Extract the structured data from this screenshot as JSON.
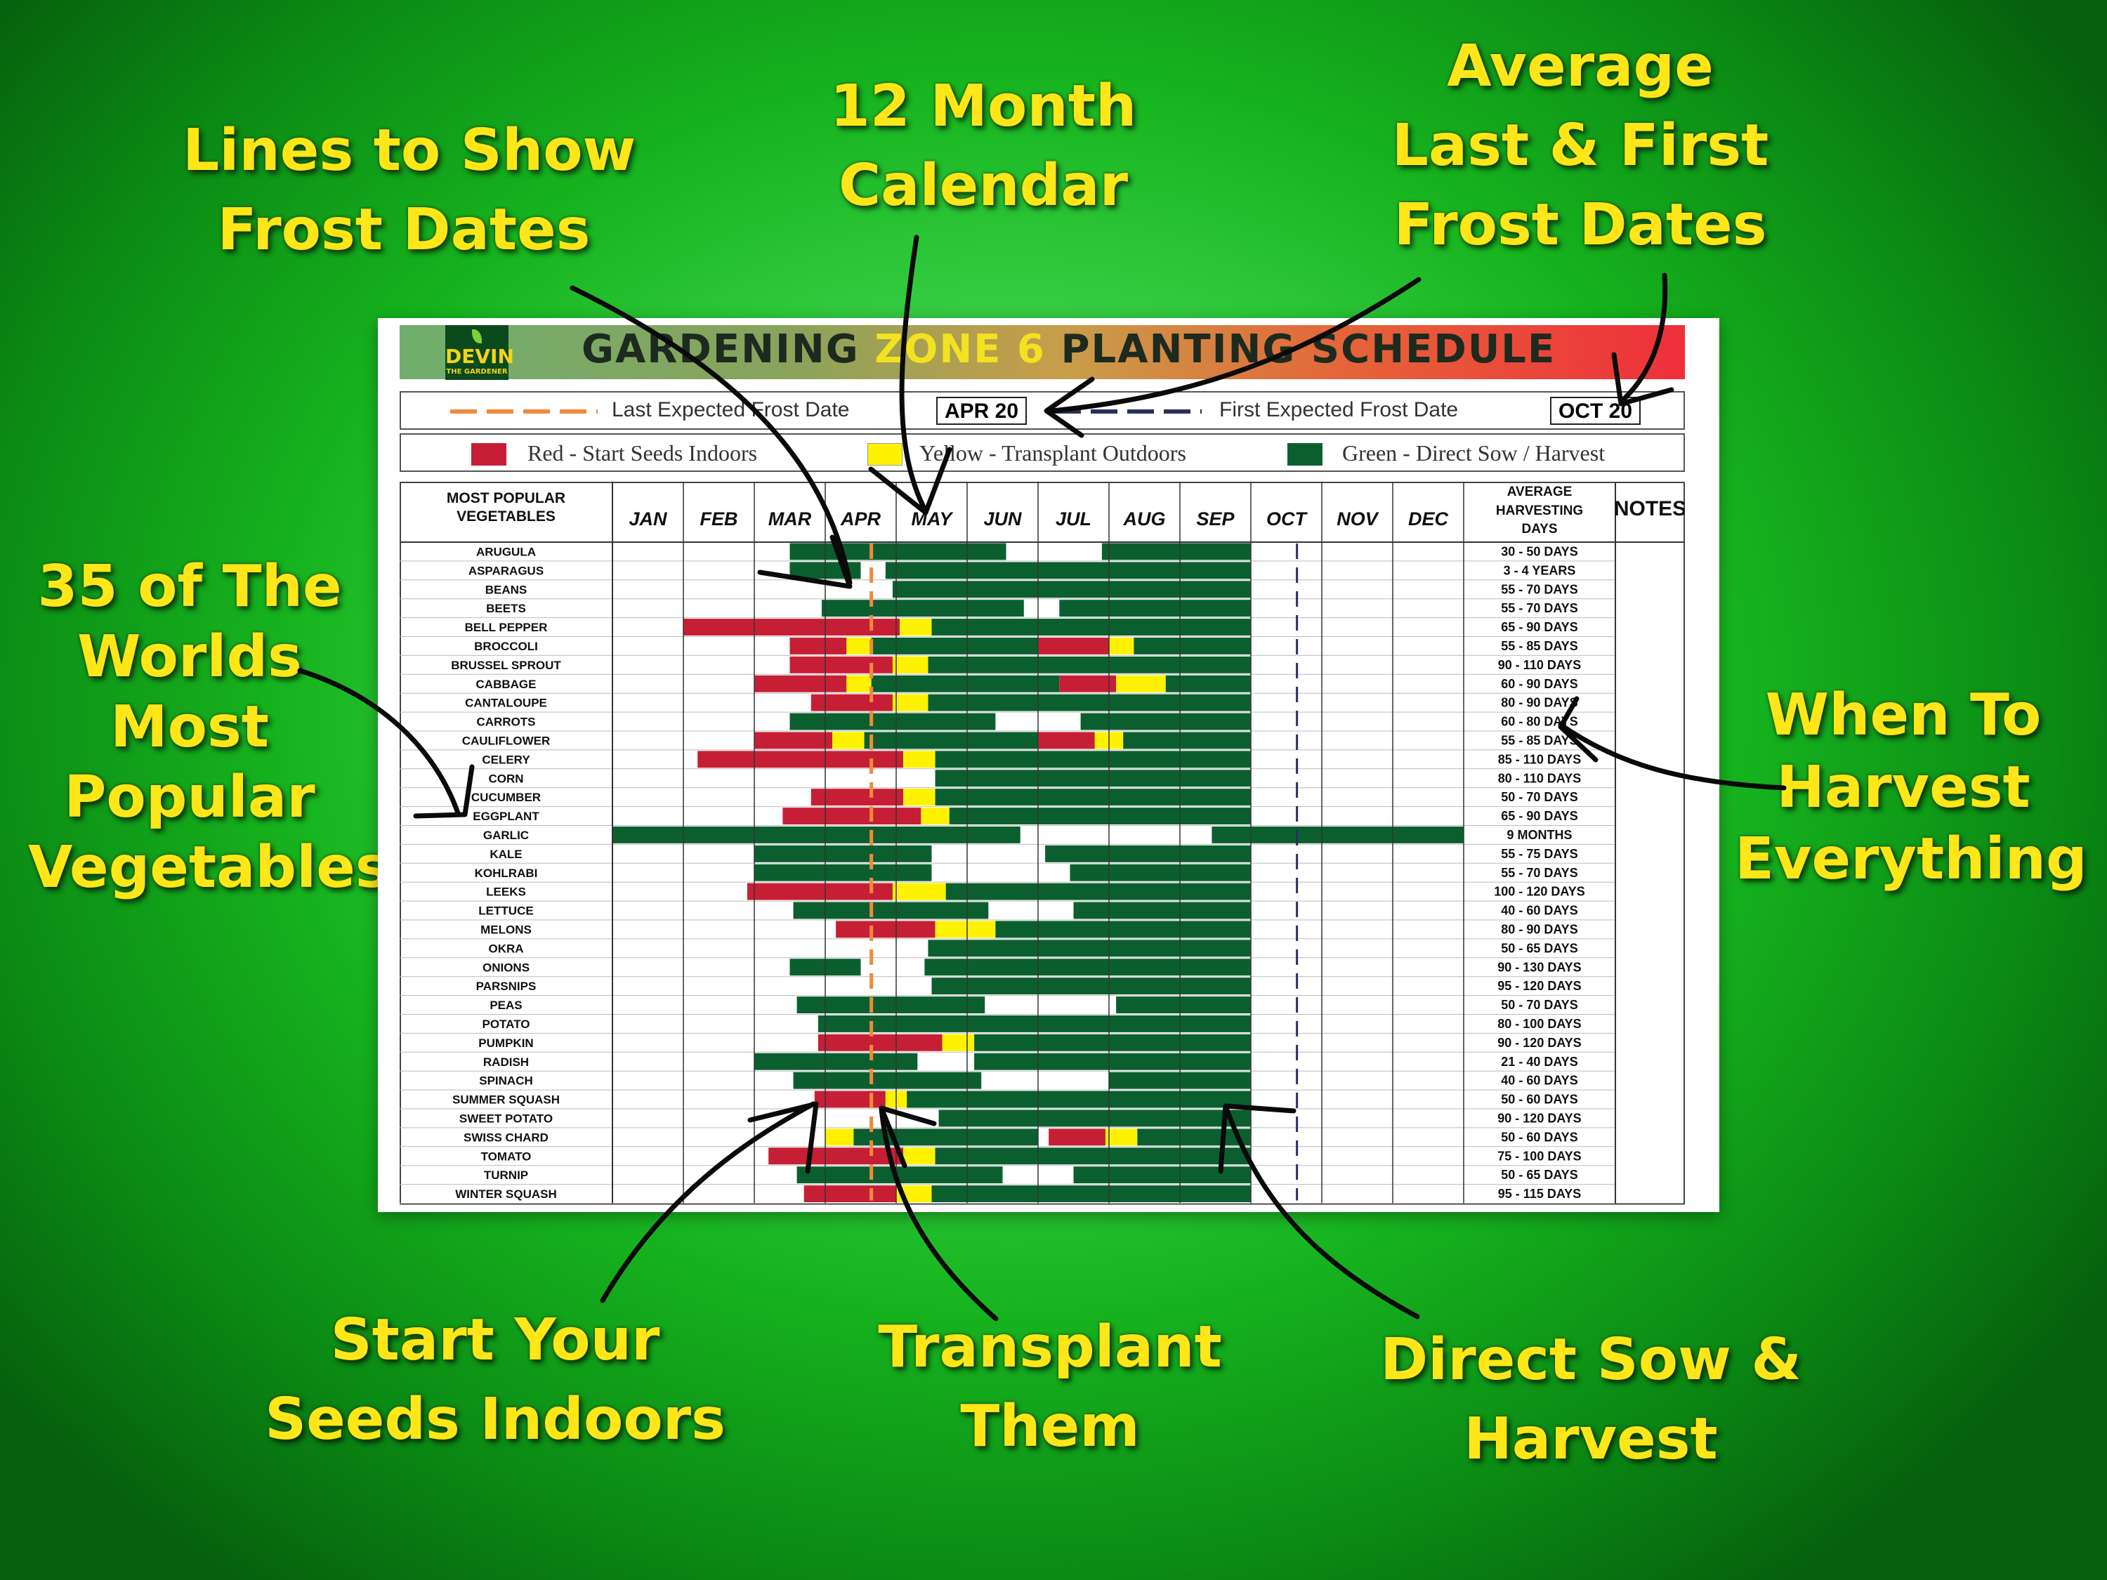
{
  "callouts": [
    {
      "id": "frost-lines",
      "lines": [
        "Lines to Show",
        "Frost Dates"
      ]
    },
    {
      "id": "calendar",
      "lines": [
        "12 Month",
        "Calendar"
      ]
    },
    {
      "id": "avg-frost",
      "lines": [
        "Average",
        "Last & First",
        "Frost Dates"
      ]
    },
    {
      "id": "popular",
      "lines": [
        "35 of The",
        "Worlds",
        "Most",
        "Popular",
        "Vegetables"
      ]
    },
    {
      "id": "harvest",
      "lines": [
        "When To",
        "Harvest",
        "Everything"
      ]
    },
    {
      "id": "indoors",
      "lines": [
        "Start Your",
        "Seeds Indoors"
      ]
    },
    {
      "id": "transplant",
      "lines": [
        "Transplant",
        "Them"
      ]
    },
    {
      "id": "sow",
      "lines": [
        "Direct Sow &",
        "Harvest"
      ]
    }
  ],
  "sheet": {
    "logo_main": "DEVIN",
    "logo_sub": "THE GARDENER",
    "title_part1": "GARDENING ",
    "title_highlight": "ZONE 6",
    "title_part2": " PLANTING SCHEDULE",
    "last_frost_label": "Last Expected Frost Date",
    "last_frost_date": "APR 20",
    "first_frost_label": "First Expected Frost Date",
    "first_frost_date": "OCT 20",
    "legend": {
      "red": "Red - Start Seeds Indoors",
      "yellow": "Yellow - Transplant Outdoors",
      "green": "Green - Direct Sow / Harvest"
    }
  },
  "colors": {
    "red": "#c61f35",
    "yellow": "#fff200",
    "green": "#0b5f2f",
    "last_frost_line": "#f08a3c",
    "first_frost_line": "#28305e"
  },
  "chart_data": {
    "type": "table",
    "headers": {
      "vegetable": "MOST POPULAR VEGETABLES",
      "harvest": "AVERAGE HARVESTING DAYS",
      "notes": "NOTES"
    },
    "months": [
      "JAN",
      "FEB",
      "MAR",
      "APR",
      "MAY",
      "JUN",
      "JUL",
      "AUG",
      "SEP",
      "OCT",
      "NOV",
      "DEC"
    ],
    "last_frost": 3.65,
    "first_frost": 9.65,
    "rows": [
      {
        "name": "ARUGULA",
        "days": "30 - 50 DAYS",
        "segments": [
          [
            "g",
            2.5,
            5.55
          ],
          [
            "g",
            6.9,
            9.0
          ]
        ]
      },
      {
        "name": "ASPARAGUS",
        "days": "3 - 4 YEARS",
        "segments": [
          [
            "g",
            2.5,
            3.5
          ],
          [
            "g",
            3.85,
            9.0
          ]
        ]
      },
      {
        "name": "BEANS",
        "days": "55 - 70 DAYS",
        "segments": [
          [
            "g",
            3.95,
            9.0
          ]
        ]
      },
      {
        "name": "BEETS",
        "days": "55 - 70 DAYS",
        "segments": [
          [
            "g",
            2.95,
            5.8
          ],
          [
            "g",
            6.3,
            9.0
          ]
        ]
      },
      {
        "name": "BELL PEPPER",
        "days": "65 - 90 DAYS",
        "segments": [
          [
            "r",
            1.0,
            4.05
          ],
          [
            "y",
            4.05,
            4.5
          ],
          [
            "g",
            4.5,
            9.0
          ]
        ]
      },
      {
        "name": "BROCCOLI",
        "days": "55 - 85 DAYS",
        "segments": [
          [
            "r",
            2.5,
            3.3
          ],
          [
            "y",
            3.3,
            3.65
          ],
          [
            "g",
            3.65,
            6.0
          ],
          [
            "r",
            6.0,
            7.0
          ],
          [
            "y",
            7.0,
            7.35
          ],
          [
            "g",
            7.35,
            9.0
          ]
        ]
      },
      {
        "name": "BRUSSEL SPROUT",
        "days": "90 - 110 DAYS",
        "segments": [
          [
            "r",
            2.5,
            3.95
          ],
          [
            "y",
            3.95,
            4.45
          ],
          [
            "g",
            4.45,
            9.0
          ]
        ]
      },
      {
        "name": "CABBAGE",
        "days": "60 - 90 DAYS",
        "segments": [
          [
            "r",
            2.0,
            3.3
          ],
          [
            "y",
            3.3,
            3.65
          ],
          [
            "g",
            3.65,
            6.3
          ],
          [
            "r",
            6.3,
            7.1
          ],
          [
            "y",
            7.1,
            7.8
          ],
          [
            "g",
            7.8,
            9.0
          ]
        ]
      },
      {
        "name": "CANTALOUPE",
        "days": "80 - 90 DAYS",
        "segments": [
          [
            "r",
            2.8,
            3.95
          ],
          [
            "y",
            3.95,
            4.45
          ],
          [
            "g",
            4.45,
            9.0
          ]
        ]
      },
      {
        "name": "CARROTS",
        "days": "60 - 80 DAYS",
        "segments": [
          [
            "g",
            2.5,
            5.4
          ],
          [
            "g",
            6.6,
            9.0
          ]
        ]
      },
      {
        "name": "CAULIFLOWER",
        "days": "55 - 85 DAYS",
        "segments": [
          [
            "r",
            2.0,
            3.1
          ],
          [
            "y",
            3.1,
            3.55
          ],
          [
            "g",
            3.55,
            6.0
          ],
          [
            "r",
            6.0,
            6.8
          ],
          [
            "y",
            6.8,
            7.2
          ],
          [
            "g",
            7.2,
            9.0
          ]
        ]
      },
      {
        "name": "CELERY",
        "days": "85 - 110 DAYS",
        "segments": [
          [
            "r",
            1.2,
            4.1
          ],
          [
            "y",
            4.1,
            4.55
          ],
          [
            "g",
            4.55,
            9.0
          ]
        ]
      },
      {
        "name": "CORN",
        "days": "80 - 110 DAYS",
        "segments": [
          [
            "g",
            4.55,
            9.0
          ]
        ]
      },
      {
        "name": "CUCUMBER",
        "days": "50 - 70 DAYS",
        "segments": [
          [
            "r",
            2.8,
            4.1
          ],
          [
            "y",
            4.1,
            4.55
          ],
          [
            "g",
            4.55,
            9.0
          ]
        ]
      },
      {
        "name": "EGGPLANT",
        "days": "65 - 90 DAYS",
        "segments": [
          [
            "r",
            2.4,
            4.35
          ],
          [
            "y",
            4.35,
            4.75
          ],
          [
            "g",
            4.75,
            9.0
          ]
        ]
      },
      {
        "name": "GARLIC",
        "days": "9 MONTHS",
        "segments": [
          [
            "g",
            0,
            5.75
          ],
          [
            "g",
            8.45,
            12.0
          ]
        ]
      },
      {
        "name": "KALE",
        "days": "55 - 75 DAYS",
        "segments": [
          [
            "g",
            2.0,
            4.5
          ],
          [
            "g",
            6.1,
            9.0
          ]
        ]
      },
      {
        "name": "KOHLRABI",
        "days": "55 - 70 DAYS",
        "segments": [
          [
            "g",
            2.0,
            4.5
          ],
          [
            "g",
            6.45,
            9.0
          ]
        ]
      },
      {
        "name": "LEEKS",
        "days": "100 - 120 DAYS",
        "segments": [
          [
            "r",
            1.9,
            3.95
          ],
          [
            "y",
            3.95,
            4.7
          ],
          [
            "g",
            4.7,
            9.0
          ]
        ]
      },
      {
        "name": "LETTUCE",
        "days": "40 - 60 DAYS",
        "segments": [
          [
            "g",
            2.55,
            5.3
          ],
          [
            "g",
            6.5,
            9.0
          ]
        ]
      },
      {
        "name": "MELONS",
        "days": "80 - 90 DAYS",
        "segments": [
          [
            "r",
            3.15,
            4.55
          ],
          [
            "y",
            4.55,
            5.4
          ],
          [
            "g",
            5.4,
            9.0
          ]
        ]
      },
      {
        "name": "OKRA",
        "days": "50 - 65 DAYS",
        "segments": [
          [
            "g",
            4.45,
            9.0
          ]
        ]
      },
      {
        "name": "ONIONS",
        "days": "90 - 130 DAYS",
        "segments": [
          [
            "g",
            2.5,
            3.5
          ],
          [
            "g",
            4.4,
            9.0
          ]
        ]
      },
      {
        "name": "PARSNIPS",
        "days": "95 - 120 DAYS",
        "segments": [
          [
            "g",
            4.5,
            9.0
          ]
        ]
      },
      {
        "name": "PEAS",
        "days": "50 - 70 DAYS",
        "segments": [
          [
            "g",
            2.6,
            5.25
          ],
          [
            "g",
            7.1,
            9.0
          ]
        ]
      },
      {
        "name": "POTATO",
        "days": "80 - 100 DAYS",
        "segments": [
          [
            "g",
            2.9,
            9.0
          ]
        ]
      },
      {
        "name": "PUMPKIN",
        "days": "90 - 120 DAYS",
        "segments": [
          [
            "r",
            2.9,
            4.65
          ],
          [
            "y",
            4.65,
            5.1
          ],
          [
            "g",
            5.1,
            9.0
          ]
        ]
      },
      {
        "name": "RADISH",
        "days": "21 - 40 DAYS",
        "segments": [
          [
            "g",
            2.0,
            4.3
          ],
          [
            "g",
            5.1,
            9.0
          ]
        ]
      },
      {
        "name": "SPINACH",
        "days": "40 - 60 DAYS",
        "segments": [
          [
            "g",
            2.55,
            5.2
          ],
          [
            "g",
            7.0,
            9.0
          ]
        ]
      },
      {
        "name": "SUMMER SQUASH",
        "days": "50 - 60 DAYS",
        "segments": [
          [
            "r",
            2.85,
            3.85
          ],
          [
            "y",
            3.85,
            4.15
          ],
          [
            "g",
            4.15,
            9.0
          ]
        ]
      },
      {
        "name": "SWEET POTATO",
        "days": "90 - 120 DAYS",
        "segments": [
          [
            "g",
            4.6,
            9.0
          ]
        ]
      },
      {
        "name": "SWISS CHARD",
        "days": "50 - 60 DAYS",
        "segments": [
          [
            "y",
            3.0,
            3.4
          ],
          [
            "g",
            3.4,
            6.0
          ],
          [
            "r",
            6.15,
            6.95
          ],
          [
            "y",
            6.95,
            7.4
          ],
          [
            "g",
            7.4,
            9.0
          ]
        ]
      },
      {
        "name": "TOMATO",
        "days": "75 - 100 DAYS",
        "segments": [
          [
            "r",
            2.2,
            4.1
          ],
          [
            "y",
            4.1,
            4.55
          ],
          [
            "g",
            4.55,
            9.0
          ]
        ]
      },
      {
        "name": "TURNIP",
        "days": "50 - 65 DAYS",
        "segments": [
          [
            "g",
            2.6,
            5.5
          ],
          [
            "g",
            6.5,
            9.0
          ]
        ]
      },
      {
        "name": "WINTER SQUASH",
        "days": "95 - 115 DAYS",
        "segments": [
          [
            "r",
            2.7,
            4.0
          ],
          [
            "y",
            4.0,
            4.5
          ],
          [
            "g",
            4.5,
            9.0
          ]
        ]
      }
    ]
  }
}
